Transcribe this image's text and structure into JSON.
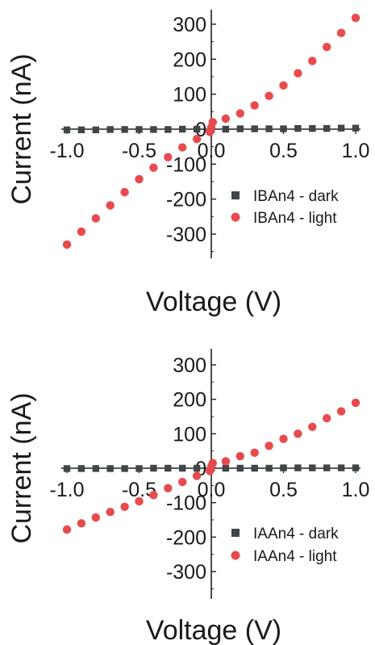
{
  "chart_data": [
    {
      "type": "scatter",
      "title": "",
      "xlabel": "Voltage (V)",
      "ylabel": "Current (nA)",
      "xlim": [
        -1.0,
        1.0
      ],
      "ylim": [
        -350,
        330
      ],
      "xticks": [
        -1.0,
        -0.5,
        0.0,
        0.5,
        1.0
      ],
      "xtick_labels": [
        "-1.0",
        "-0.5",
        "0.0",
        "0.5",
        "1.0"
      ],
      "yticks": [
        -300,
        -200,
        -100,
        0,
        100,
        200,
        300
      ],
      "ytick_labels": [
        "-300",
        "-200",
        "-100",
        "0",
        "100",
        "200",
        "300"
      ],
      "grid": false,
      "legend_position": "lower-right",
      "series": [
        {
          "name": "IBAn4 - dark",
          "marker": "square",
          "color": "#3f4549",
          "x": [
            -1.0,
            -0.9,
            -0.8,
            -0.7,
            -0.6,
            -0.5,
            -0.4,
            -0.3,
            -0.2,
            -0.1,
            0.0,
            0.1,
            0.2,
            0.3,
            0.4,
            0.5,
            0.6,
            0.7,
            0.8,
            0.9,
            1.0
          ],
          "y": [
            -2,
            -2,
            -2,
            -1,
            -1,
            -1,
            -1,
            -1,
            0,
            0,
            0,
            0,
            1,
            1,
            1,
            1,
            2,
            2,
            2,
            3,
            3
          ]
        },
        {
          "name": "IBAn4 - light",
          "marker": "circle",
          "color": "#e84a4d",
          "x": [
            -1.0,
            -0.9,
            -0.8,
            -0.7,
            -0.6,
            -0.5,
            -0.4,
            -0.3,
            -0.2,
            -0.1,
            -0.01,
            0.0,
            0.01,
            0.1,
            0.2,
            0.3,
            0.4,
            0.5,
            0.6,
            0.7,
            0.8,
            0.9,
            1.0
          ],
          "y": [
            -330,
            -293,
            -255,
            -218,
            -180,
            -143,
            -110,
            -80,
            -52,
            -28,
            -8,
            5,
            20,
            30,
            45,
            68,
            95,
            125,
            160,
            195,
            235,
            275,
            318
          ]
        }
      ]
    },
    {
      "type": "scatter",
      "title": "",
      "xlabel": "Voltage (V)",
      "ylabel": "Current (nA)",
      "xlim": [
        -1.0,
        1.0
      ],
      "ylim": [
        -350,
        330
      ],
      "xticks": [
        -1.0,
        -0.5,
        0.0,
        0.5,
        1.0
      ],
      "xtick_labels": [
        "-1.0",
        "-0.5",
        "0.0",
        "0.5",
        "1.0"
      ],
      "yticks": [
        -300,
        -200,
        -100,
        0,
        100,
        200,
        300
      ],
      "ytick_labels": [
        "-300",
        "-200",
        "-100",
        "0",
        "100",
        "200",
        "300"
      ],
      "grid": false,
      "legend_position": "lower-right",
      "series": [
        {
          "name": "IAAn4 - dark",
          "marker": "square",
          "color": "#3f4549",
          "x": [
            -1.0,
            -0.9,
            -0.8,
            -0.7,
            -0.6,
            -0.5,
            -0.4,
            -0.3,
            -0.2,
            -0.1,
            0.0,
            0.1,
            0.2,
            0.3,
            0.4,
            0.5,
            0.6,
            0.7,
            0.8,
            0.9,
            1.0
          ],
          "y": [
            -1,
            -1,
            -1,
            -1,
            -1,
            -1,
            0,
            0,
            0,
            0,
            0,
            0,
            0,
            0,
            0,
            1,
            1,
            1,
            1,
            1,
            1
          ]
        },
        {
          "name": "IAAn4 - light",
          "marker": "circle",
          "color": "#e84a4d",
          "x": [
            -1.0,
            -0.9,
            -0.8,
            -0.7,
            -0.6,
            -0.5,
            -0.4,
            -0.3,
            -0.2,
            -0.1,
            -0.01,
            0.0,
            0.01,
            0.1,
            0.2,
            0.3,
            0.4,
            0.5,
            0.6,
            0.7,
            0.8,
            0.9,
            1.0
          ],
          "y": [
            -178,
            -160,
            -143,
            -127,
            -112,
            -96,
            -78,
            -58,
            -40,
            -22,
            -8,
            5,
            15,
            20,
            35,
            45,
            65,
            85,
            100,
            120,
            145,
            165,
            190
          ]
        }
      ]
    }
  ]
}
